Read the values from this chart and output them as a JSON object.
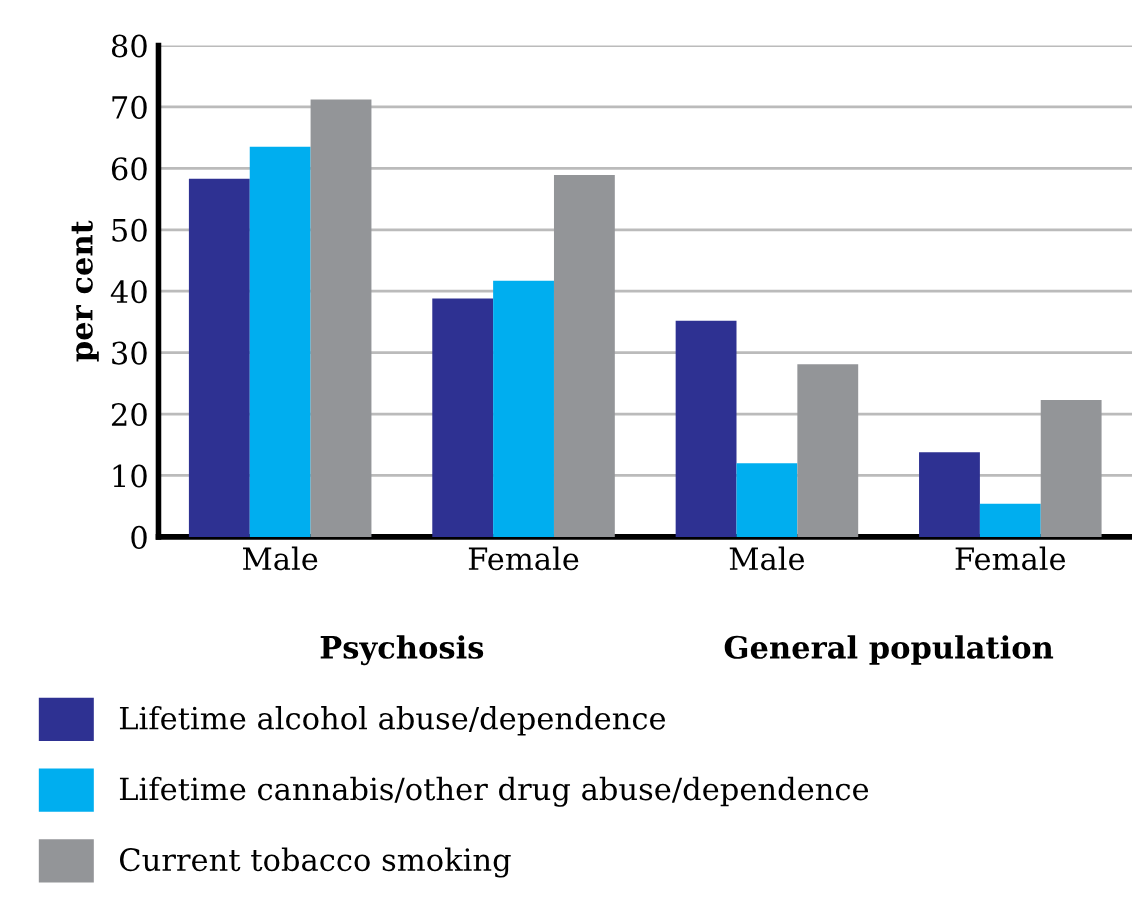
{
  "chart_data": {
    "type": "bar",
    "ylabel": "per cent",
    "categories": [
      "Male",
      "Female",
      "Male",
      "Female"
    ],
    "series": [
      {
        "name": "Lifetime alcohol abuse/dependence",
        "color": "#2e3192",
        "values": [
          58.3,
          38.8,
          35.2,
          13.8
        ]
      },
      {
        "name": "Lifetime cannabis/other drug abuse/dependence",
        "color": "#00aeef",
        "values": [
          63.5,
          41.7,
          12.0,
          5.4
        ]
      },
      {
        "name": "Current tobacco smoking",
        "color": "#939598",
        "values": [
          71.2,
          58.9,
          28.1,
          22.3
        ]
      }
    ],
    "annotations": [
      "Psychosis",
      "General population"
    ],
    "ylim": [
      0,
      80
    ],
    "yticks": [
      0,
      10,
      20,
      30,
      40,
      50,
      60,
      70,
      80
    ],
    "grid": "y",
    "legend": "bottom"
  }
}
